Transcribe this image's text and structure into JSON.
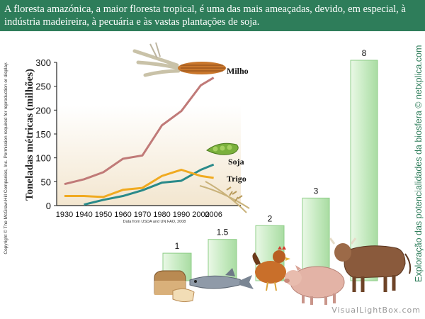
{
  "header": {
    "text": "A floresta amazónica, a maior floresta tropical, é uma das mais ameaçadas, devido, em especial, à indústria madeireira, à pecuária e às vastas plantações de soja."
  },
  "copyright": "Copyright © The McGraw-Hill Companies, Inc. Permission required for reproduction or display.",
  "credit": "Exploração das potencialidades da biosfera © netxplica.com",
  "watermark": "VisualLightBox.com",
  "colors": {
    "header_bg": "#2e7d5a",
    "milho": "#c07a78",
    "soja": "#2a8a8a",
    "trigo": "#f0aa20",
    "bar": "#c8ebc3",
    "bar_edge": "#8fce88",
    "plot_bg_top": "#ffffff",
    "plot_bg_bottom": "#f3e6cf"
  },
  "chart_data": [
    {
      "type": "line",
      "title": "",
      "ylabel": "Toneladas métricas (milhões)",
      "xlabel": "",
      "source": "Data from USDA and UN FAO, 2008",
      "x": [
        1930,
        1940,
        1950,
        1960,
        1970,
        1980,
        1990,
        2000,
        2006
      ],
      "x_tick_labels": [
        "1930",
        "1940",
        "1950",
        "1960",
        "1970",
        "1980",
        "1990",
        "2000",
        "2006"
      ],
      "ylim": [
        0,
        300
      ],
      "y_ticks": [
        0,
        50,
        100,
        150,
        200,
        250,
        300
      ],
      "series": [
        {
          "name": "Milho",
          "values": [
            45,
            55,
            70,
            98,
            105,
            168,
            198,
            252,
            268
          ]
        },
        {
          "name": "Soja",
          "values": [
            null,
            2,
            12,
            20,
            32,
            48,
            52,
            75,
            86
          ]
        },
        {
          "name": "Trigo",
          "values": [
            20,
            20,
            18,
            33,
            37,
            62,
            75,
            62,
            58
          ]
        }
      ]
    },
    {
      "type": "bar",
      "title": "",
      "categories": [
        "pão",
        "peixe",
        "frango",
        "porco",
        "vaca"
      ],
      "values": [
        1,
        1.5,
        2,
        3,
        8
      ],
      "value_labels": [
        "1",
        "1.5",
        "2",
        "3",
        "8"
      ],
      "ylim": [
        0,
        8
      ]
    }
  ]
}
